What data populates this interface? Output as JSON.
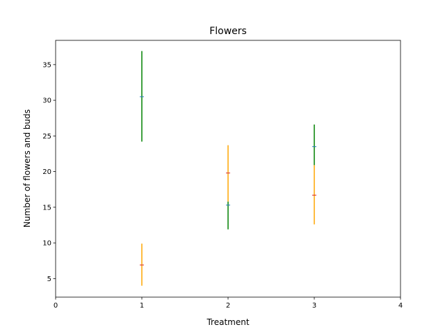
{
  "chart_data": {
    "type": "scatter",
    "title": "Flowers",
    "xlabel": "Treatment",
    "ylabel": "Number of flowers and buds",
    "xlim": [
      0,
      4
    ],
    "ylim": [
      2.4,
      38.4
    ],
    "xticks": [
      "0",
      "1",
      "2",
      "3",
      "4"
    ],
    "yticks": [
      "5",
      "10",
      "15",
      "20",
      "25",
      "30",
      "35"
    ],
    "grid": false,
    "series": [
      {
        "color": "#008000",
        "marker_color": "#1f77b4",
        "points": [
          {
            "x": 1,
            "y": 30.5,
            "low": 24.2,
            "high": 36.9
          },
          {
            "x": 2,
            "y": 15.3,
            "low": 11.9,
            "high": 15.8
          },
          {
            "x": 3,
            "y": 23.5,
            "low": 20.9,
            "high": 26.6
          }
        ]
      },
      {
        "color": "#ffa500",
        "marker_color": "#d62728",
        "points": [
          {
            "x": 1,
            "y": 6.9,
            "low": 4.0,
            "high": 9.9
          },
          {
            "x": 2,
            "y": 19.8,
            "low": 15.8,
            "high": 23.7
          },
          {
            "x": 3,
            "y": 16.7,
            "low": 12.6,
            "high": 20.9
          }
        ]
      }
    ]
  }
}
